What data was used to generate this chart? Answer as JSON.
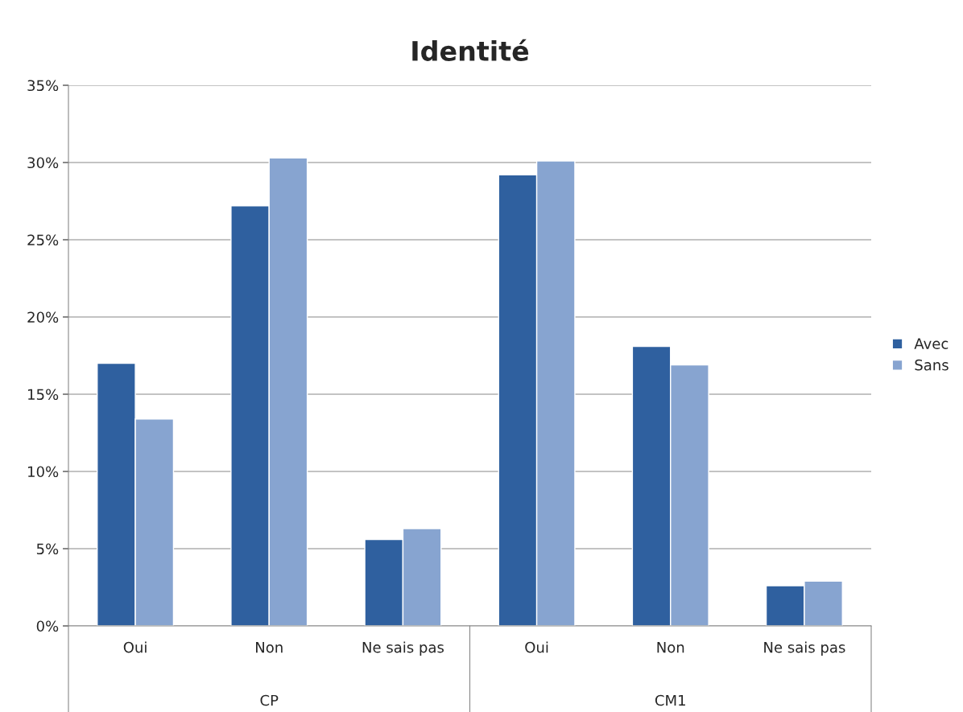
{
  "chart_data": {
    "type": "bar",
    "title": "Identité",
    "categories": [
      "Oui",
      "Non",
      "Ne sais pas",
      "Oui",
      "Non",
      "Ne sais pas"
    ],
    "annotations": [
      "CP",
      "CM1"
    ],
    "series": [
      {
        "name": "Avec",
        "color": "#2f609f",
        "values": [
          17.0,
          27.2,
          5.6,
          29.2,
          18.1,
          2.6
        ]
      },
      {
        "name": "Sans",
        "color": "#87a4d0",
        "values": [
          13.4,
          30.3,
          6.3,
          30.1,
          16.9,
          2.9
        ]
      }
    ],
    "ylim": [
      0,
      35
    ],
    "yticks": [
      {
        "value": 0,
        "label": "0%"
      },
      {
        "value": 5,
        "label": "5%"
      },
      {
        "value": 10,
        "label": "10%"
      },
      {
        "value": 15,
        "label": "15%"
      },
      {
        "value": 20,
        "label": "20%"
      },
      {
        "value": 25,
        "label": "25%"
      },
      {
        "value": 30,
        "label": "30%"
      },
      {
        "value": 35,
        "label": "35%"
      }
    ],
    "grid": "y",
    "legend": "right"
  }
}
